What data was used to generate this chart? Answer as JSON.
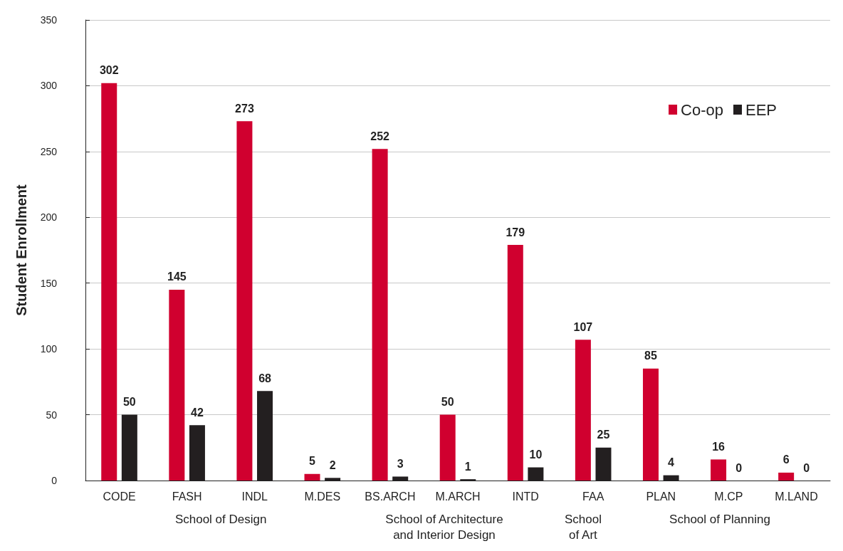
{
  "chart_data": {
    "type": "bar",
    "ylabel": "Student Enrollment",
    "categories": [
      "CODE",
      "FASH",
      "INDL",
      "M.DES",
      "BS.ARCH",
      "M.ARCH",
      "INTD",
      "FAA",
      "PLAN",
      "M.CP",
      "M.LAND"
    ],
    "series": [
      {
        "name": "Co-op",
        "color": "#d0002f",
        "values": [
          302,
          145,
          273,
          5,
          252,
          50,
          179,
          107,
          85,
          16,
          6
        ]
      },
      {
        "name": "EEP",
        "color": "#231f20",
        "values": [
          50,
          42,
          68,
          2,
          3,
          1,
          10,
          25,
          4,
          0,
          0
        ]
      }
    ],
    "ylim": [
      0,
      350
    ],
    "yticks": [
      0,
      50,
      100,
      150,
      200,
      250,
      300,
      350
    ],
    "grid": "y",
    "legend": "top right",
    "data_labels": true,
    "annotations": [
      "School of Design",
      "School of Architecture\nand Interior Design",
      "School\nof Art",
      "School of Planning"
    ]
  }
}
